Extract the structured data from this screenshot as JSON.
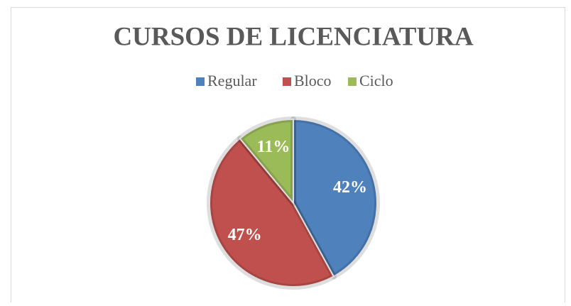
{
  "chart_data": {
    "type": "pie",
    "title": "CURSOS DE LICENCIATURA",
    "categories": [
      "Regular",
      "Bloco",
      "Ciclo"
    ],
    "values": [
      42,
      47,
      11
    ],
    "value_labels": [
      "42%",
      "47%",
      "11%"
    ],
    "colors": [
      "#4f81bd",
      "#c0504d",
      "#9bbb59"
    ],
    "legend": "top"
  }
}
